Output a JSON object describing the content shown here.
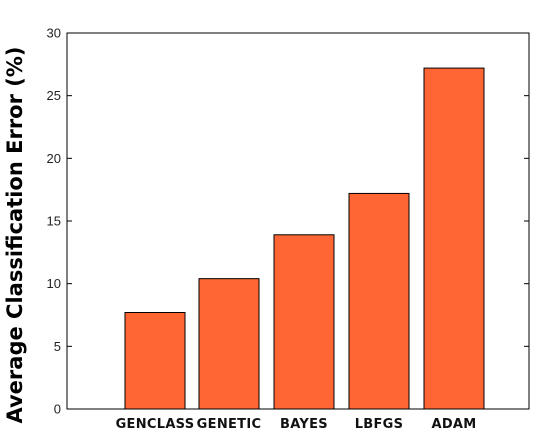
{
  "chart_data": {
    "type": "bar",
    "title": "",
    "xlabel": "",
    "ylabel": "Average Classification Error (%)",
    "categories": [
      "GENCLASS",
      "GENETIC",
      "BAYES",
      "LBFGS",
      "ADAM"
    ],
    "values": [
      7.7,
      10.4,
      13.9,
      17.2,
      27.2
    ],
    "ylim": [
      0,
      30
    ],
    "yticks": [
      0,
      5,
      10,
      15,
      20,
      25,
      30
    ],
    "grid": false,
    "bar_color": "#ff6633",
    "bar_edge_color": "#000000"
  }
}
